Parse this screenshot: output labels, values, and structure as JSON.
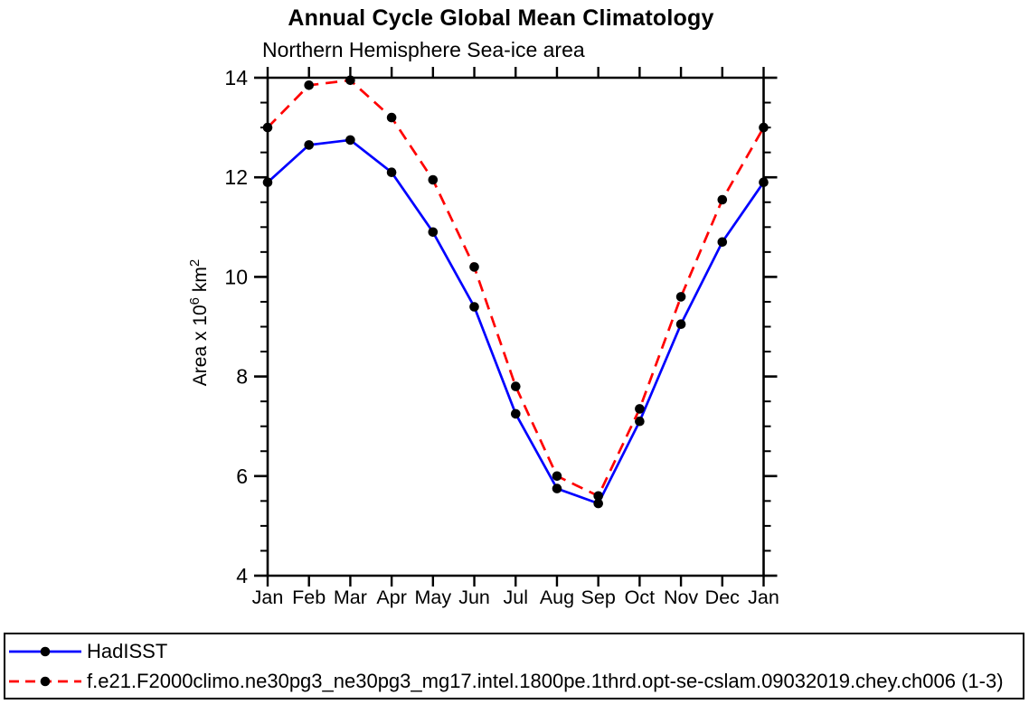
{
  "title": "Annual Cycle Global Mean Climatology",
  "subtitle": "Northern Hemisphere Sea-ice area",
  "colors": {
    "axis": "#000000",
    "marker": "#000000",
    "hadisst_line": "#0000ff",
    "model_line": "#ff0000",
    "background": "#ffffff"
  },
  "chart_data": {
    "type": "line",
    "title": "Annual Cycle Global Mean Climatology",
    "subtitle": "Northern Hemisphere Sea-ice area",
    "xlabel": "",
    "ylabel": "Area x 10^6 km^2",
    "ylabel_parts": {
      "prefix": "Area x 10",
      "sup1": "6",
      "mid": " km",
      "sup2": "2"
    },
    "categories": [
      "Jan",
      "Feb",
      "Mar",
      "Apr",
      "May",
      "Jun",
      "Jul",
      "Aug",
      "Sep",
      "Oct",
      "Nov",
      "Dec",
      "Jan"
    ],
    "ylim": [
      4,
      14
    ],
    "y_major_ticks": [
      4,
      6,
      8,
      10,
      12,
      14
    ],
    "y_minor_step": 0.5,
    "grid": false,
    "legend_position": "bottom box, full width",
    "series": [
      {
        "id": "hadisst",
        "name": "HadISST",
        "color": "#0000ff",
        "style": "solid",
        "marker": "filled-circle",
        "values": [
          11.9,
          12.65,
          12.75,
          12.1,
          10.9,
          9.4,
          7.25,
          5.75,
          5.45,
          7.1,
          9.05,
          10.7,
          11.9
        ]
      },
      {
        "id": "model",
        "name": "f.e21.F2000climo.ne30pg3_ne30pg3_mg17.intel.1800pe.1thrd.opt-se-cslam.09032019.chey.ch006 (1-3)",
        "color": "#ff0000",
        "style": "dashed",
        "marker": "filled-circle",
        "values": [
          13.0,
          13.85,
          13.95,
          13.2,
          11.95,
          10.2,
          7.8,
          6.0,
          5.6,
          7.35,
          9.6,
          11.55,
          13.0
        ]
      }
    ]
  }
}
